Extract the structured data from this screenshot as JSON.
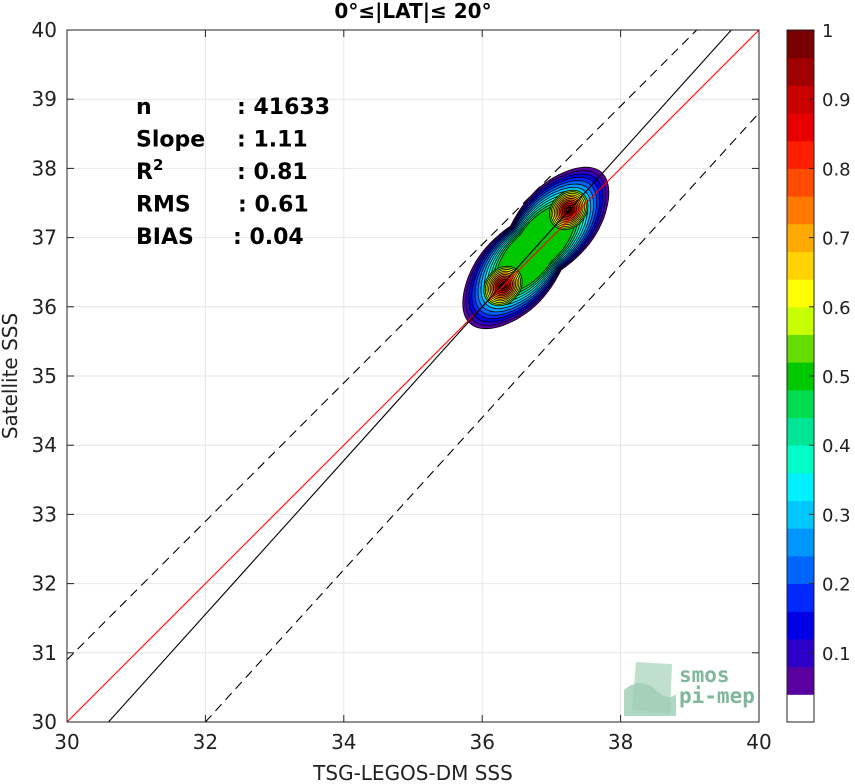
{
  "chart_data": {
    "type": "scatter",
    "title": "0°≤|LAT|≤ 20°",
    "xlabel": "TSG-LEGOS-DM SSS",
    "ylabel": "Satellite SSS",
    "xlim": [
      30,
      40
    ],
    "ylim": [
      30,
      40
    ],
    "xticks": [
      "30",
      "32",
      "34",
      "36",
      "38",
      "40"
    ],
    "yticks": [
      "30",
      "31",
      "32",
      "33",
      "34",
      "35",
      "36",
      "37",
      "38",
      "39",
      "40"
    ],
    "grid": true,
    "stats": [
      {
        "label": "n",
        "value": ": 41633"
      },
      {
        "label": "Slope",
        "value": ": 1.11"
      },
      {
        "label": "R",
        "sup": "2",
        "value": ": 0.81"
      },
      {
        "label": "RMS",
        "value": ": 0.61"
      },
      {
        "label": "BIAS",
        "value": ": 0.04"
      }
    ],
    "reference_lines": [
      {
        "name": "identity",
        "color": "#ff0000",
        "style": "solid",
        "points": [
          [
            30,
            30
          ],
          [
            40,
            40
          ]
        ]
      },
      {
        "name": "regression",
        "color": "#000000",
        "style": "solid",
        "slope": 1.11,
        "points": [
          [
            30.6,
            30
          ],
          [
            39.6,
            40
          ]
        ]
      },
      {
        "name": "upper-bound",
        "color": "#000000",
        "style": "dashed",
        "points": [
          [
            30,
            30.9
          ],
          [
            39.1,
            40
          ]
        ]
      },
      {
        "name": "lower-bound",
        "color": "#000000",
        "style": "dashed",
        "points": [
          [
            32,
            30
          ],
          [
            40,
            38.8
          ]
        ]
      }
    ],
    "density_peaks": [
      {
        "x": 36.3,
        "y": 36.3
      },
      {
        "x": 37.25,
        "y": 37.4
      }
    ],
    "colorbar": {
      "range": [
        0,
        1
      ],
      "ticks": [
        "0.1",
        "0.2",
        "0.3",
        "0.4",
        "0.5",
        "0.6",
        "0.7",
        "0.8",
        "0.9",
        "1"
      ],
      "colors": [
        "#ffffff",
        "#5a00a0",
        "#2d00c8",
        "#0000e6",
        "#0028ff",
        "#0064ff",
        "#0096ff",
        "#00c8ff",
        "#00f0ff",
        "#00ffc8",
        "#00e696",
        "#00dc50",
        "#00c800",
        "#64dc00",
        "#c8ff00",
        "#ffff00",
        "#ffd200",
        "#ffaa00",
        "#ff7800",
        "#ff4b00",
        "#ff1e00",
        "#e60000",
        "#c80000",
        "#a00000",
        "#780000"
      ]
    },
    "logo": {
      "line1": "smos",
      "line2": "pi-mep"
    }
  }
}
